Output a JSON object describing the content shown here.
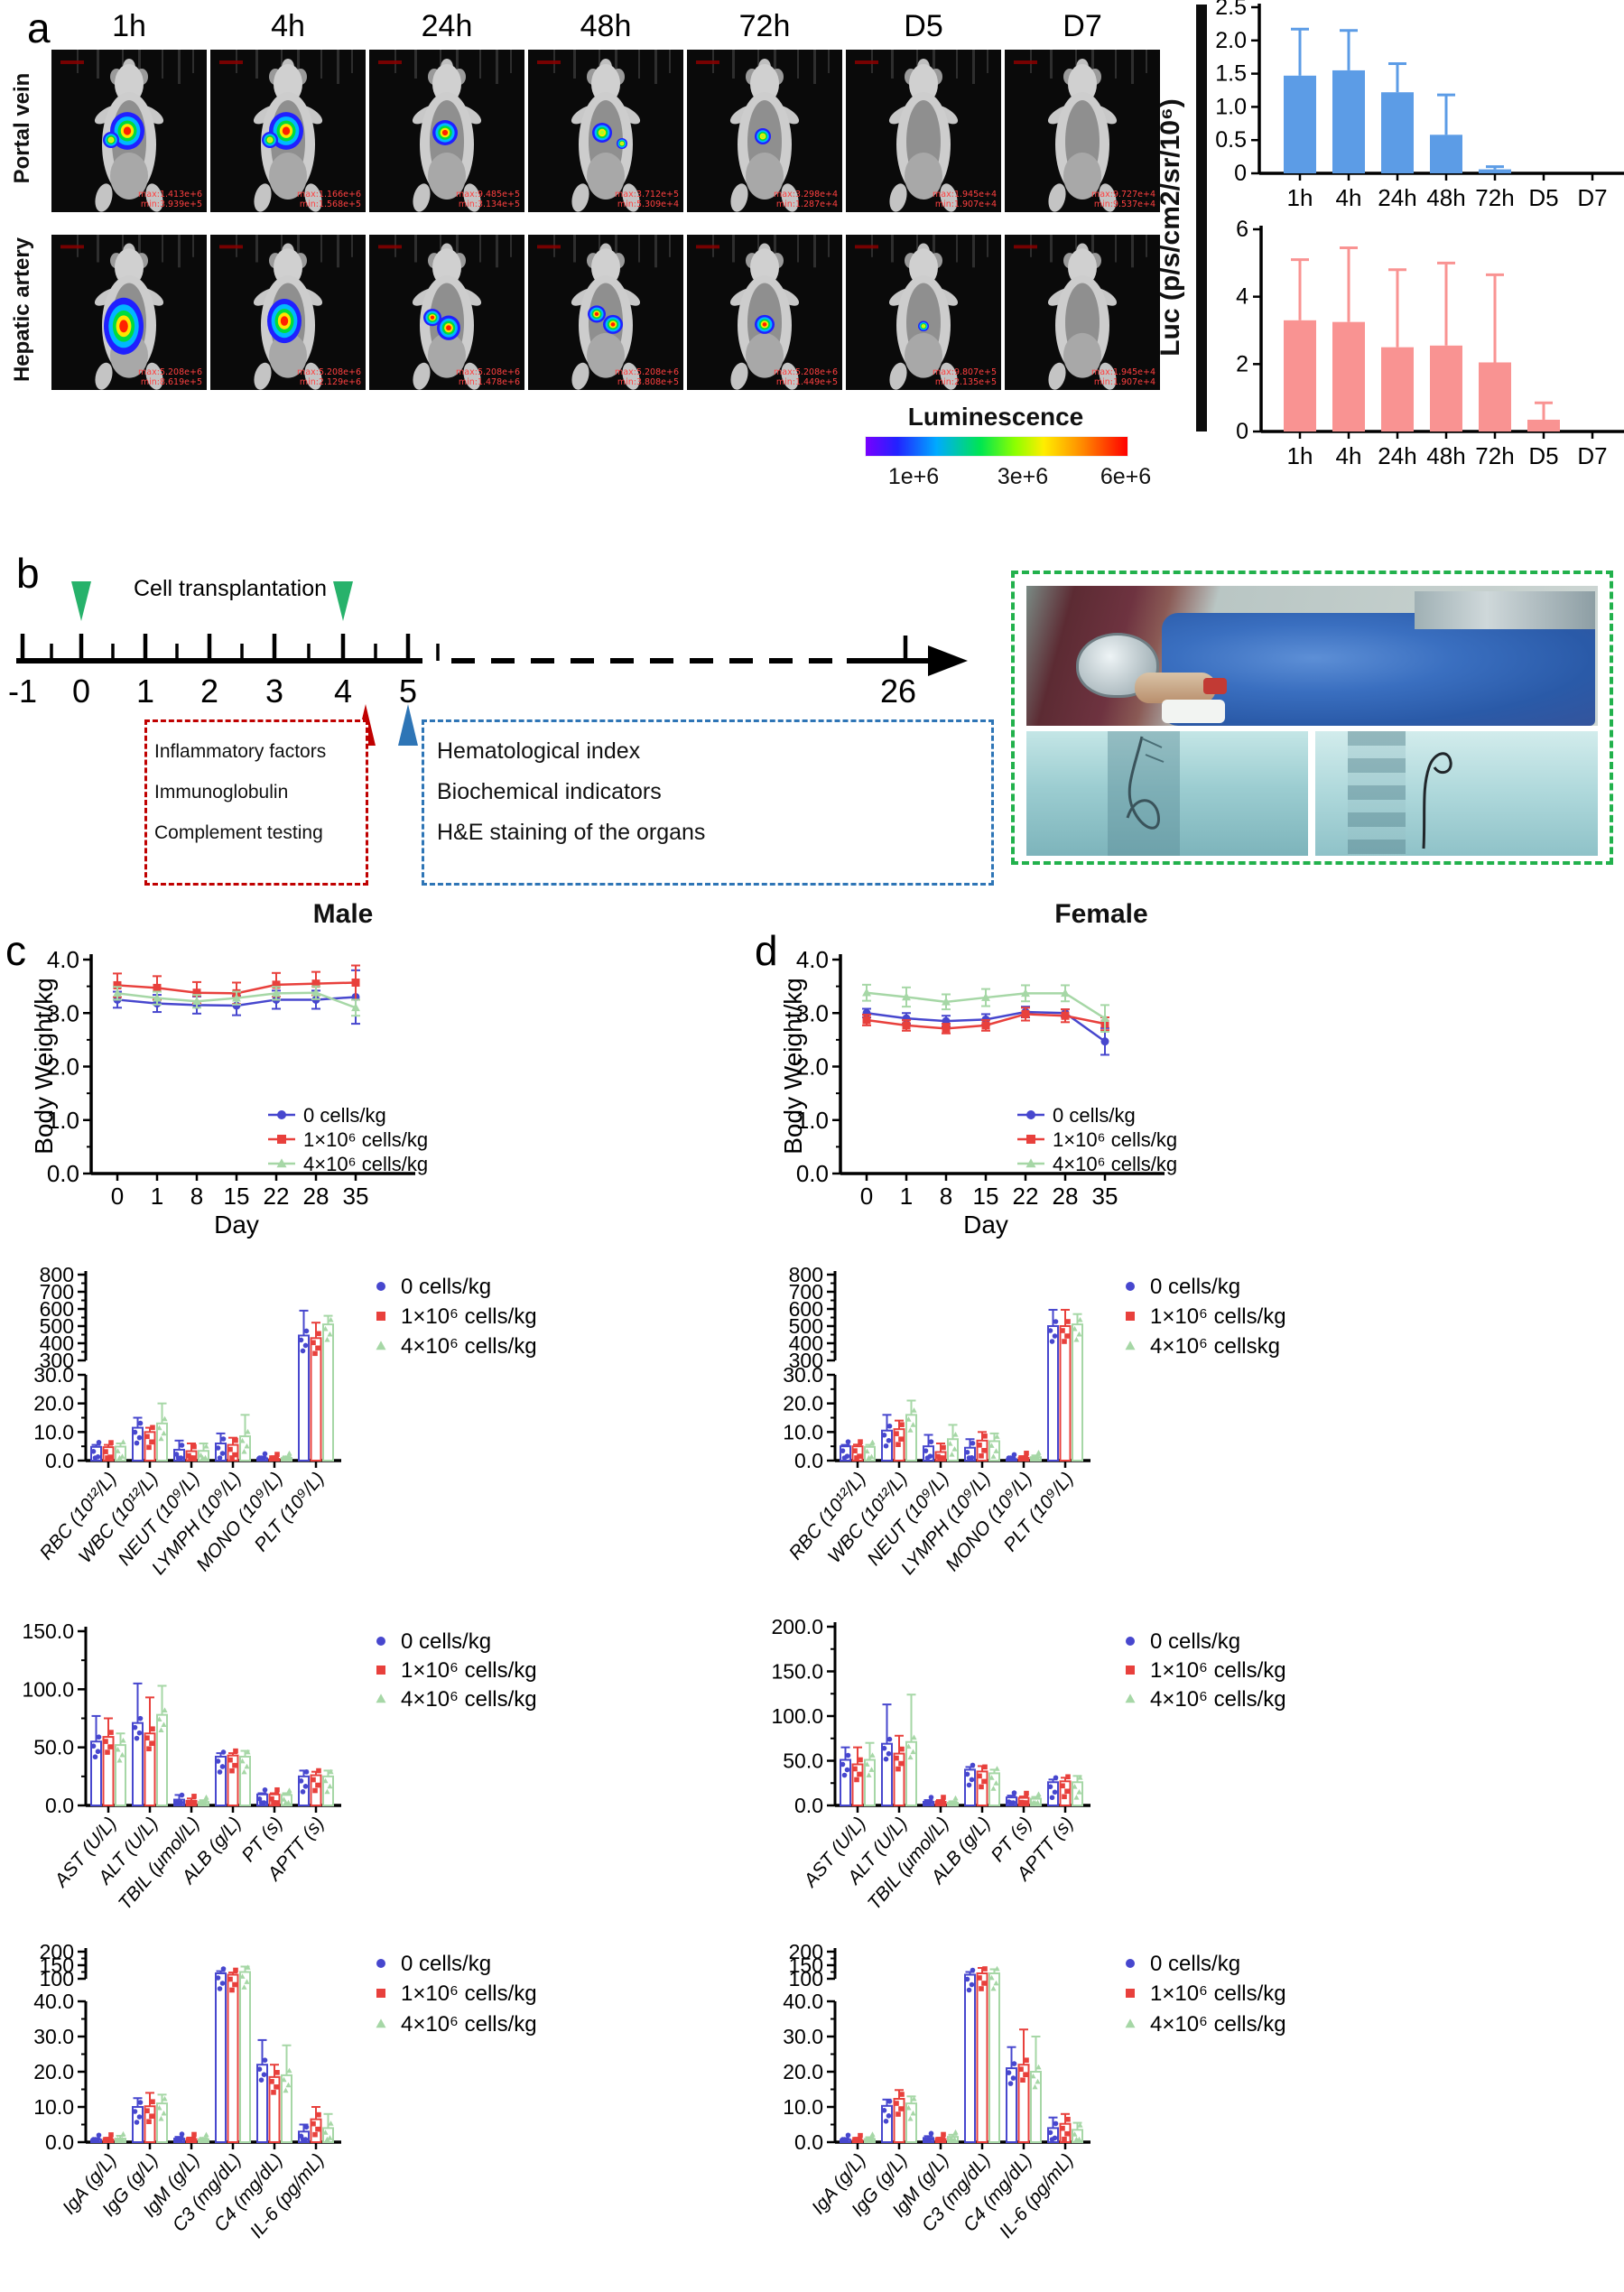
{
  "figure_labels": {
    "a": "a",
    "b": "b",
    "c": "c",
    "d": "d"
  },
  "panel_a": {
    "timepoints": [
      "1h",
      "4h",
      "24h",
      "48h",
      "72h",
      "D5",
      "D7"
    ],
    "rows": [
      {
        "label": "Portal vein",
        "tiles": [
          {
            "max": "max:1.413e+6",
            "min": "min:3.939e+5",
            "signal": "large"
          },
          {
            "max": "max:1.166e+6",
            "min": "min:1.568e+5",
            "signal": "large"
          },
          {
            "max": "max:9.485e+5",
            "min": "min:3.134e+5",
            "signal": "medium"
          },
          {
            "max": "max:3.712e+5",
            "min": "min:5.309e+4",
            "signal": "small2"
          },
          {
            "max": "max:3.298e+4",
            "min": "min:1.287e+4",
            "signal": "small"
          },
          {
            "max": "max:1.945e+4",
            "min": "min:1.907e+4",
            "signal": "none"
          },
          {
            "max": "max:9.727e+4",
            "min": "min:9.537e+4",
            "signal": "none"
          }
        ]
      },
      {
        "label": "Hepatic artery",
        "tiles": [
          {
            "max": "max:5.208e+6",
            "min": "min:8.619e+5",
            "signal": "xlarge_red"
          },
          {
            "max": "max:5.208e+6",
            "min": "min:2.129e+6",
            "signal": "large_red"
          },
          {
            "max": "max:5.208e+6",
            "min": "min:1.478e+6",
            "signal": "medium_red"
          },
          {
            "max": "max:5.208e+6",
            "min": "min:3.808e+5",
            "signal": "medium_red2"
          },
          {
            "max": "max:5.208e+6",
            "min": "min:1.449e+5",
            "signal": "small_red"
          },
          {
            "max": "max:9.807e+5",
            "min": "min:2.135e+5",
            "signal": "dot"
          },
          {
            "max": "max:1.945e+4",
            "min": "min:1.907e+4",
            "signal": "none"
          }
        ]
      }
    ],
    "luminescence": {
      "title": "Luminescence",
      "labels": [
        "1e+6",
        "3e+6",
        "6e+6"
      ]
    },
    "luc_axis_label": "Luc (p/s/cm2/sr/10⁶)"
  },
  "panel_b": {
    "title": "Cell transplantation",
    "axis_numbers": [
      "-1",
      "0",
      "1",
      "2",
      "3",
      "4",
      "5",
      "26"
    ],
    "boxes": {
      "red": {
        "lines": [
          "Inflammatory factors",
          "Immunoglobulin",
          "Complement testing"
        ]
      },
      "blue": {
        "lines": [
          "Hematological index",
          "Biochemical indicators",
          "H&E staining of the organs"
        ]
      }
    },
    "colors": {
      "transplant_arrow": "#27B26B",
      "red_arrow": "#C00000",
      "blue_arrow": "#2E75B6"
    }
  },
  "chart_data": [
    {
      "id": "luc_portal",
      "type": "bar",
      "color": "#5C9CE6",
      "categories": [
        "1h",
        "4h",
        "24h",
        "48h",
        "72h",
        "D5",
        "D7"
      ],
      "values": [
        1.47,
        1.55,
        1.22,
        0.58,
        0.06,
        0,
        0
      ],
      "errors": [
        0.7,
        0.6,
        0.43,
        0.6,
        0.04,
        0,
        0
      ],
      "ylim": [
        0,
        2.5
      ],
      "ytick_vals": [
        0,
        0.5,
        1,
        1.5,
        2,
        2.5
      ],
      "ytick_labels": [
        "0",
        "0.5",
        "1.0",
        "1.5",
        "2.0",
        "2.5"
      ],
      "ylabel": "Luc (p/s/cm2/sr/10⁶)"
    },
    {
      "id": "luc_hepatic",
      "type": "bar",
      "color": "#F99392",
      "categories": [
        "1h",
        "4h",
        "24h",
        "48h",
        "72h",
        "D5",
        "D7"
      ],
      "values": [
        3.3,
        3.25,
        2.5,
        2.55,
        2.05,
        0.35,
        0
      ],
      "errors": [
        1.8,
        2.2,
        2.3,
        2.45,
        2.6,
        0.5,
        0
      ],
      "ylim": [
        0,
        6
      ],
      "ytick_vals": [
        0,
        2,
        4,
        6
      ],
      "ytick_labels": [
        "0",
        "2",
        "4",
        "6"
      ],
      "ylabel": "Luc (p/s/cm2/sr/10⁶)"
    },
    {
      "id": "bw_male",
      "type": "line",
      "title": "Male",
      "xlabel": "Day",
      "ylabel": "Body Weight/kg",
      "x": [
        0,
        1,
        8,
        15,
        22,
        28,
        35
      ],
      "ylim": [
        0,
        4
      ],
      "ytick_vals": [
        0,
        1,
        2,
        3,
        4
      ],
      "ytick_labels": [
        "0.0",
        "1.0",
        "2.0",
        "3.0",
        "4.0"
      ],
      "series": [
        {
          "name": "0 cells/kg",
          "color": "#4747CE",
          "marker": "circle",
          "values": [
            3.25,
            3.18,
            3.15,
            3.14,
            3.25,
            3.25,
            3.3
          ],
          "errors": [
            0.15,
            0.16,
            0.16,
            0.18,
            0.17,
            0.17,
            0.5
          ]
        },
        {
          "name": "1×10⁶ cells/kg",
          "color": "#E8403C",
          "marker": "square",
          "values": [
            3.52,
            3.47,
            3.38,
            3.37,
            3.53,
            3.55,
            3.57
          ],
          "errors": [
            0.22,
            0.22,
            0.2,
            0.2,
            0.22,
            0.22,
            0.32
          ]
        },
        {
          "name": "4×10⁶ cells/kg",
          "color": "#A6D7A6",
          "marker": "triangle",
          "values": [
            3.37,
            3.28,
            3.22,
            3.28,
            3.37,
            3.38,
            3.1
          ],
          "errors": [
            0.12,
            0.12,
            0.12,
            0.12,
            0.12,
            0.12,
            0.15
          ]
        }
      ]
    },
    {
      "id": "bw_female",
      "type": "line",
      "title": "Female",
      "xlabel": "Day",
      "ylabel": "Body Weight/kg",
      "x": [
        0,
        1,
        8,
        15,
        22,
        28,
        35
      ],
      "ylim": [
        0,
        4
      ],
      "ytick_vals": [
        0,
        1,
        2,
        3,
        4
      ],
      "ytick_labels": [
        "0.0",
        "1.0",
        "2.0",
        "3.0",
        "4.0"
      ],
      "series": [
        {
          "name": "0 cells/kg",
          "color": "#4747CE",
          "marker": "circle",
          "values": [
            3.0,
            2.9,
            2.85,
            2.88,
            3.02,
            3.0,
            2.47
          ],
          "errors": [
            0.08,
            0.1,
            0.1,
            0.1,
            0.1,
            0.07,
            0.25
          ]
        },
        {
          "name": "1×10⁶ cells/kg",
          "color": "#E8403C",
          "marker": "square",
          "values": [
            2.87,
            2.77,
            2.71,
            2.77,
            2.98,
            2.95,
            2.8
          ],
          "errors": [
            0.1,
            0.1,
            0.09,
            0.1,
            0.12,
            0.12,
            0.12
          ]
        },
        {
          "name": "4×10⁶ cells/kg",
          "color": "#A6D7A6",
          "marker": "triangle",
          "values": [
            3.38,
            3.3,
            3.21,
            3.29,
            3.37,
            3.37,
            2.9
          ],
          "errors": [
            0.15,
            0.18,
            0.14,
            0.16,
            0.15,
            0.15,
            0.25
          ]
        }
      ]
    },
    {
      "id": "hema_male",
      "type": "grouped_bar",
      "broken": true,
      "categories": [
        "RBC (10¹²/L)",
        "WBC (10¹²/L)",
        "NEUT (10⁹/L)",
        "LYMPH (10⁹/L)",
        "MONO (10⁹/L)",
        "PLT (10⁹/L)"
      ],
      "lower": {
        "lim": [
          0,
          30
        ],
        "tick_vals": [
          0,
          10,
          20,
          30
        ],
        "tick_labels": [
          "0.0",
          "10.0",
          "20.0",
          "30.0"
        ]
      },
      "upper": {
        "lim": [
          300,
          800
        ],
        "tick_vals": [
          300,
          400,
          500,
          600,
          700,
          800
        ],
        "tick_labels": [
          "300",
          "400",
          "500",
          "600",
          "700",
          "800"
        ]
      },
      "series": [
        {
          "name": "0 cells/kg",
          "color": "#4747CE",
          "marker": "circle",
          "values": [
            4.8,
            11.5,
            3.8,
            6.0,
            0.8,
            445
          ],
          "errors": [
            0.7,
            3.5,
            3.2,
            3.5,
            0.4,
            145
          ]
        },
        {
          "name": "1×10⁶ cells/kg",
          "color": "#E8403C",
          "marker": "square",
          "values": [
            4.7,
            10.0,
            3.3,
            5.5,
            0.6,
            430
          ],
          "errors": [
            0.8,
            1.5,
            2.7,
            2.5,
            0.3,
            90
          ]
        },
        {
          "name": "4×10⁶ cells/kg",
          "color": "#A6D7A6",
          "marker": "triangle",
          "values": [
            4.9,
            13.0,
            3.4,
            8.5,
            0.9,
            510
          ],
          "errors": [
            1.1,
            7.0,
            2.6,
            7.5,
            0.5,
            50
          ]
        }
      ]
    },
    {
      "id": "hema_female",
      "type": "grouped_bar",
      "broken": true,
      "categories": [
        "RBC (10¹²/L)",
        "WBC (10¹²/L)",
        "NEUT (10⁹/L)",
        "LYMPH (10⁹/L)",
        "MONO (10⁹/L)",
        "PLT (10⁹/L)"
      ],
      "lower": {
        "lim": [
          0,
          30
        ],
        "tick_vals": [
          0,
          10,
          20,
          30
        ],
        "tick_labels": [
          "0.0",
          "10.0",
          "20.0",
          "30.0"
        ]
      },
      "upper": {
        "lim": [
          300,
          800
        ],
        "tick_vals": [
          300,
          400,
          500,
          600,
          700,
          800
        ],
        "tick_labels": [
          "300",
          "400",
          "500",
          "600",
          "700",
          "800"
        ]
      },
      "series": [
        {
          "name": "0 cells/kg",
          "color": "#4747CE",
          "marker": "circle",
          "values": [
            5.0,
            10.5,
            5.0,
            4.5,
            0.5,
            500
          ],
          "errors": [
            0.5,
            5.5,
            4.0,
            3.0,
            0.3,
            95
          ]
        },
        {
          "name": "1×10⁶ cells/kg",
          "color": "#E8403C",
          "marker": "square",
          "values": [
            5.0,
            11.0,
            3.0,
            7.0,
            1.0,
            500
          ],
          "errors": [
            0.6,
            3.0,
            3.0,
            3.0,
            0.5,
            95
          ]
        },
        {
          "name": "4×10⁶ cellskg",
          "color": "#A6D7A6",
          "marker": "triangle",
          "values": [
            4.8,
            16.0,
            7.5,
            6.8,
            1.2,
            510
          ],
          "errors": [
            0.7,
            5.0,
            5.0,
            2.7,
            0.6,
            60
          ]
        }
      ]
    },
    {
      "id": "chem_male",
      "type": "grouped_bar",
      "broken": false,
      "categories": [
        "AST (U/L)",
        "ALT (U/L)",
        "TBIL (μmol/L)",
        "ALB (g/L)",
        "PT (s)",
        "APTT (s)"
      ],
      "scale": {
        "lim": [
          0,
          150
        ],
        "tick_vals": [
          0,
          50,
          100,
          150
        ],
        "tick_labels": [
          "0.0",
          "50.0",
          "100.0",
          "150.0"
        ]
      },
      "series": [
        {
          "name": "0 cells/kg",
          "color": "#4747CE",
          "marker": "circle",
          "values": [
            55,
            71,
            5,
            42,
            9.5,
            25
          ],
          "errors": [
            22,
            34,
            4,
            3,
            1,
            5
          ]
        },
        {
          "name": "1×10⁶ cells/kg",
          "color": "#E8403C",
          "marker": "square",
          "values": [
            59,
            62,
            4,
            43,
            9.5,
            26
          ],
          "errors": [
            16,
            31,
            2,
            2,
            1,
            3
          ]
        },
        {
          "name": "4×10⁶ cells/kg",
          "color": "#A6D7A6",
          "marker": "triangle",
          "values": [
            52,
            78,
            3,
            42,
            9,
            25
          ],
          "errors": [
            10,
            25,
            1.5,
            5,
            1.5,
            5
          ]
        }
      ]
    },
    {
      "id": "chem_female",
      "type": "grouped_bar",
      "broken": false,
      "categories": [
        "AST (U/L)",
        "ALT (U/L)",
        "TBIL (μmol/L)",
        "ALB (g/L)",
        "PT (s)",
        "APTT (s)"
      ],
      "scale": {
        "lim": [
          0,
          200
        ],
        "tick_vals": [
          0,
          50,
          100,
          150,
          200
        ],
        "tick_labels": [
          "0.0",
          "50.0",
          "100.0",
          "150.0",
          "200.0"
        ]
      },
      "series": [
        {
          "name": "0 cells/kg",
          "color": "#4747CE",
          "marker": "circle",
          "values": [
            51,
            69,
            4,
            40,
            9,
            26
          ],
          "errors": [
            14,
            44,
            2,
            3,
            2,
            3
          ]
        },
        {
          "name": "1×10⁶ cells/kg",
          "color": "#E8403C",
          "marker": "square",
          "values": [
            46,
            58,
            4,
            38,
            8.5,
            27
          ],
          "errors": [
            19,
            20,
            2,
            6,
            1.5,
            4
          ]
        },
        {
          "name": "4×10⁶ cells/kg",
          "color": "#A6D7A6",
          "marker": "triangle",
          "values": [
            51,
            71,
            3,
            36,
            7.5,
            26
          ],
          "errors": [
            19,
            53,
            1.5,
            4,
            2,
            7
          ]
        }
      ]
    },
    {
      "id": "imm_male",
      "type": "grouped_bar",
      "broken": true,
      "categories": [
        "IgA (g/L)",
        "IgG (g/L)",
        "IgM (g/L)",
        "C3 (mg/dL)",
        "C4 (mg/dL)",
        "IL-6 (pg/mL)"
      ],
      "lower": {
        "lim": [
          0,
          40
        ],
        "tick_vals": [
          0,
          10,
          20,
          30,
          40
        ],
        "tick_labels": [
          "0.0",
          "10.0",
          "20.0",
          "30.0",
          "40.0"
        ]
      },
      "upper": {
        "lim": [
          100,
          200
        ],
        "tick_vals": [
          100,
          150,
          200
        ],
        "tick_labels": [
          "100",
          "150",
          "200"
        ]
      },
      "series": [
        {
          "name": "0 cells/kg",
          "color": "#4747CE",
          "marker": "circle",
          "values": [
            0.7,
            10.0,
            1.0,
            120,
            22,
            3.0
          ],
          "errors": [
            0.3,
            2.5,
            0.5,
            8,
            7,
            2.0
          ]
        },
        {
          "name": "1×10⁶ cells/kg",
          "color": "#E8403C",
          "marker": "square",
          "values": [
            0.8,
            10.2,
            0.9,
            115,
            18.5,
            6.5
          ],
          "errors": [
            0.3,
            3.8,
            0.4,
            8,
            3.5,
            3.5
          ]
        },
        {
          "name": "4×10⁶ cells/kg",
          "color": "#A6D7A6",
          "marker": "triangle",
          "values": [
            1.0,
            11.0,
            0.8,
            125,
            19,
            4.0
          ],
          "errors": [
            0.8,
            2.5,
            0.4,
            20,
            8.5,
            4.0
          ]
        }
      ]
    },
    {
      "id": "imm_female",
      "type": "grouped_bar",
      "broken": true,
      "categories": [
        "IgA (g/L)",
        "IgG (g/L)",
        "IgM (g/L)",
        "C3 (mg/dL)",
        "C4 (mg/dL)",
        "IL-6 (pg/mL)"
      ],
      "lower": {
        "lim": [
          0,
          40
        ],
        "tick_vals": [
          0,
          10,
          20,
          30,
          40
        ],
        "tick_labels": [
          "0.0",
          "10.0",
          "20.0",
          "30.0",
          "40.0"
        ]
      },
      "upper": {
        "lim": [
          100,
          200
        ],
        "tick_vals": [
          100,
          150,
          200
        ],
        "tick_labels": [
          "100",
          "150",
          "200"
        ]
      },
      "series": [
        {
          "name": "0 cells/kg",
          "color": "#4747CE",
          "marker": "circle",
          "values": [
            0.7,
            10.3,
            1.2,
            115,
            21,
            4.0
          ],
          "errors": [
            0.2,
            1.8,
            0.5,
            10,
            6,
            3.0
          ]
        },
        {
          "name": "1×10⁶ cells/kg",
          "color": "#E8403C",
          "marker": "square",
          "values": [
            0.6,
            12.3,
            0.9,
            120,
            22,
            5.2
          ],
          "errors": [
            0.2,
            2.5,
            0.3,
            20,
            10,
            2.8
          ]
        },
        {
          "name": "4×10⁶ cells/kg",
          "color": "#A6D7A6",
          "marker": "triangle",
          "values": [
            0.9,
            11.0,
            1.5,
            120,
            20,
            3.5
          ],
          "errors": [
            0.5,
            2.0,
            0.6,
            15,
            10,
            2.0
          ]
        }
      ]
    }
  ]
}
